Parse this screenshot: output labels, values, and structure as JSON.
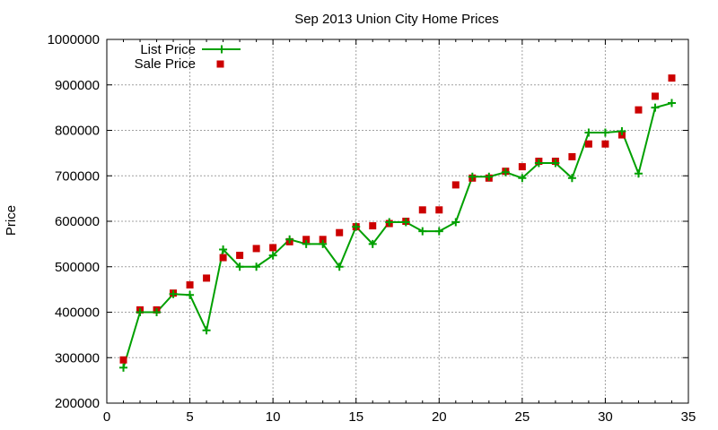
{
  "chart_data": {
    "type": "line",
    "title": "Sep 2013 Union City Home Prices",
    "ylabel": "Price",
    "xlim": [
      0,
      35
    ],
    "ylim": [
      200000,
      1000000
    ],
    "xticks": [
      0,
      5,
      10,
      15,
      20,
      25,
      30,
      35
    ],
    "yticks": [
      200000,
      300000,
      400000,
      500000,
      600000,
      700000,
      800000,
      900000,
      1000000
    ],
    "grid": true,
    "legend_position": "top-left",
    "series": [
      {
        "name": "List Price",
        "style": "line+plus-markers",
        "color": "#00a000",
        "x": [
          1,
          2,
          3,
          4,
          5,
          6,
          7,
          8,
          9,
          10,
          11,
          12,
          13,
          14,
          15,
          16,
          17,
          18,
          19,
          20,
          21,
          22,
          23,
          24,
          25,
          26,
          27,
          28,
          29,
          30,
          31,
          32,
          33,
          34
        ],
        "values": [
          278000,
          400000,
          400000,
          440000,
          438000,
          360000,
          538000,
          500000,
          500000,
          525000,
          560000,
          550000,
          550000,
          500000,
          588000,
          550000,
          598000,
          598000,
          578000,
          578000,
          598000,
          698000,
          698000,
          708000,
          695000,
          728000,
          728000,
          695000,
          795000,
          795000,
          798000,
          705000,
          850000,
          860000
        ]
      },
      {
        "name": "Sale Price",
        "style": "square-markers",
        "color": "#cc0000",
        "x": [
          1,
          2,
          3,
          4,
          5,
          6,
          7,
          8,
          9,
          10,
          11,
          12,
          13,
          14,
          15,
          16,
          17,
          18,
          19,
          20,
          21,
          22,
          23,
          24,
          25,
          26,
          27,
          28,
          29,
          30,
          31,
          32,
          33,
          34
        ],
        "values": [
          295000,
          405000,
          405000,
          442000,
          460000,
          475000,
          520000,
          525000,
          540000,
          542000,
          555000,
          560000,
          560000,
          575000,
          588000,
          590000,
          595000,
          600000,
          625000,
          625000,
          680000,
          695000,
          695000,
          710000,
          720000,
          732000,
          732000,
          742000,
          770000,
          770000,
          790000,
          845000,
          875000,
          915000
        ]
      }
    ]
  }
}
